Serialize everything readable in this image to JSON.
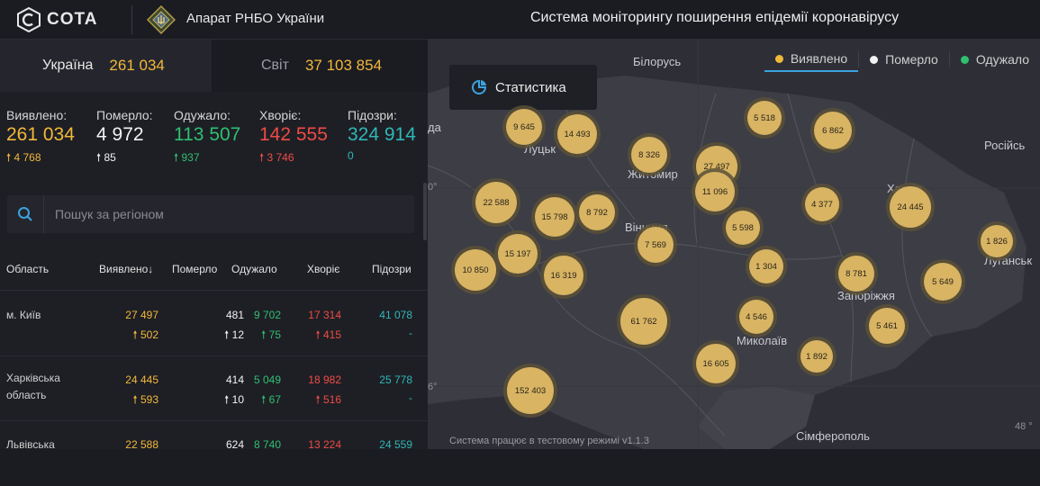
{
  "header": {
    "logo_text": "COTA",
    "org_name": "Апарат РНБО України",
    "system_title": "Система моніторингу поширення епідемії коронавірусу"
  },
  "tabs": {
    "ukraine": {
      "label": "Україна",
      "value": "261 034"
    },
    "world": {
      "label": "Світ",
      "value": "37 103 854"
    }
  },
  "stats": {
    "detected": {
      "label": "Виявлено:",
      "value": "261 034",
      "delta": "4 768"
    },
    "died": {
      "label": "Померло:",
      "value": "4 972",
      "delta": "85"
    },
    "recovered": {
      "label": "Одужало:",
      "value": "113 507",
      "delta": "937"
    },
    "sick": {
      "label": "Хворіє:",
      "value": "142 555",
      "delta": "3 746"
    },
    "suspected": {
      "label": "Підозри:",
      "value": "324 914",
      "delta": "0"
    }
  },
  "search": {
    "placeholder": "Пошук за регіоном"
  },
  "table": {
    "headers": {
      "region": "Область",
      "detected": "Виявлено",
      "died": "Померло",
      "recovered": "Одужало",
      "sick": "Хворіє",
      "suspected": "Підозри"
    },
    "sort_arrow": "↓",
    "rows": [
      {
        "name": "м. Київ",
        "detected": "27 497",
        "detected_d": "502",
        "died": "481",
        "died_d": "12",
        "recovered": "9 702",
        "recovered_d": "75",
        "sick": "17 314",
        "sick_d": "415",
        "suspected": "41 078",
        "suspected_d": "-"
      },
      {
        "name": "Харківська область",
        "detected": "24 445",
        "detected_d": "593",
        "died": "414",
        "died_d": "10",
        "recovered": "5 049",
        "recovered_d": "67",
        "sick": "18 982",
        "sick_d": "516",
        "suspected": "25 778",
        "suspected_d": "-"
      },
      {
        "name": "Львівська",
        "detected": "22 588",
        "detected_d": "",
        "died": "624",
        "died_d": "",
        "recovered": "8 740",
        "recovered_d": "",
        "sick": "13 224",
        "sick_d": "",
        "suspected": "24 559",
        "suspected_d": ""
      }
    ]
  },
  "map": {
    "legend": {
      "detected": "Виявлено",
      "died": "Померло",
      "recovered": "Одужало"
    },
    "stats_button": "Статистика",
    "labels": {
      "belarus": "Білорусь",
      "russia": "Російсь",
      "lutsk": "Луцьк",
      "zhytomyr": "Житомир",
      "vinnytsia": "Вінниця",
      "kharkiv": "Харків",
      "luhansk": "Луганськ",
      "zaporizhzhia": "Запоріжжя",
      "mykolaiv": "Миколаїв",
      "simferopol": "Сімферополь",
      "edge_left": "да"
    },
    "coords": {
      "c1": "0°",
      "c2": "6°",
      "c3": "48 °"
    },
    "bubbles": [
      "9 645",
      "14 493",
      "5 518",
      "6 862",
      "8 326",
      "27 497",
      "11 096",
      "22 588",
      "15 798",
      "8 792",
      "4 377",
      "24 445",
      "5 598",
      "7 569",
      "1 826",
      "15 197",
      "10 850",
      "16 319",
      "1 304",
      "8 781",
      "5 649",
      "61 762",
      "4 546",
      "5 461",
      "16 605",
      "1 892",
      "152 403"
    ],
    "footer": "Система працює в тестовому режимі v1.1.3"
  },
  "colors": {
    "detected": "#f2b83a",
    "died": "#f2f2f2",
    "recovered": "#2fbf71",
    "sick": "#ef4b45",
    "suspected": "#2fb7b7",
    "bubble": "#d8b463"
  }
}
